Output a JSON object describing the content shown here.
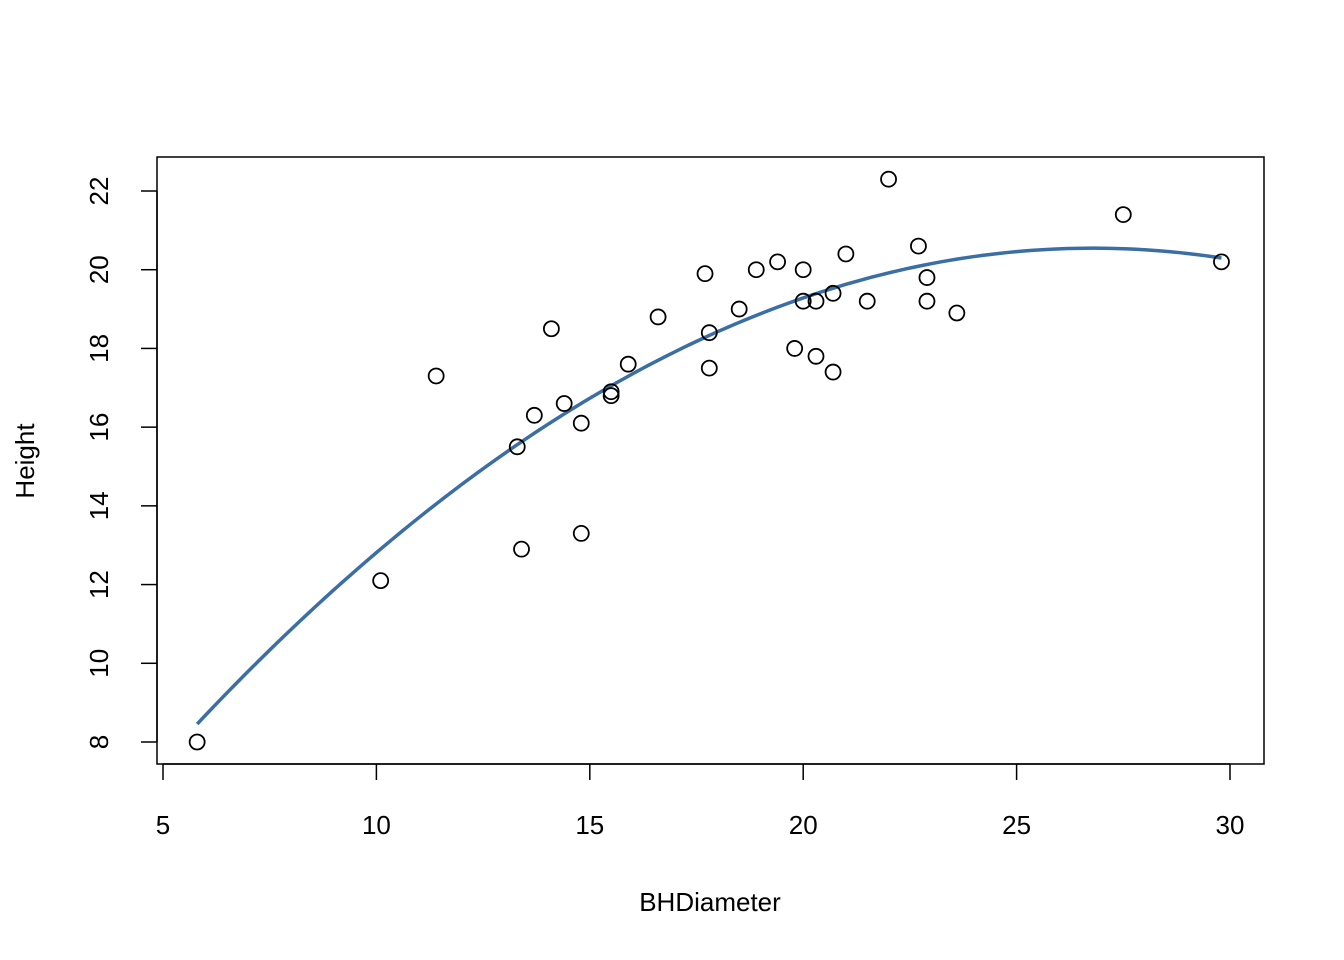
{
  "chart_data": {
    "type": "scatter",
    "title": "",
    "xlabel": "BHDiameter",
    "ylabel": "Height",
    "xlim": [
      5,
      30
    ],
    "ylim": [
      8,
      22
    ],
    "grid": false,
    "x_ticks": [
      5,
      10,
      15,
      20,
      25,
      30
    ],
    "y_ticks": [
      8,
      10,
      12,
      14,
      16,
      18,
      20,
      22
    ],
    "points": [
      {
        "x": 5.8,
        "y": 8.0
      },
      {
        "x": 10.1,
        "y": 12.1
      },
      {
        "x": 11.4,
        "y": 17.3
      },
      {
        "x": 13.3,
        "y": 15.5
      },
      {
        "x": 13.4,
        "y": 12.9
      },
      {
        "x": 13.7,
        "y": 16.3
      },
      {
        "x": 14.1,
        "y": 18.5
      },
      {
        "x": 14.4,
        "y": 16.6
      },
      {
        "x": 14.8,
        "y": 16.1
      },
      {
        "x": 14.8,
        "y": 13.3
      },
      {
        "x": 15.5,
        "y": 16.9
      },
      {
        "x": 15.5,
        "y": 16.8
      },
      {
        "x": 15.9,
        "y": 17.6
      },
      {
        "x": 16.6,
        "y": 18.8
      },
      {
        "x": 17.7,
        "y": 19.9
      },
      {
        "x": 17.8,
        "y": 18.4
      },
      {
        "x": 17.8,
        "y": 17.5
      },
      {
        "x": 18.5,
        "y": 19.0
      },
      {
        "x": 18.9,
        "y": 20.0
      },
      {
        "x": 19.4,
        "y": 20.2
      },
      {
        "x": 19.8,
        "y": 18.0
      },
      {
        "x": 20.0,
        "y": 20.0
      },
      {
        "x": 20.0,
        "y": 19.2
      },
      {
        "x": 20.3,
        "y": 19.2
      },
      {
        "x": 20.3,
        "y": 17.8
      },
      {
        "x": 20.7,
        "y": 19.4
      },
      {
        "x": 20.7,
        "y": 17.4
      },
      {
        "x": 21.0,
        "y": 20.4
      },
      {
        "x": 21.5,
        "y": 19.2
      },
      {
        "x": 22.0,
        "y": 22.3
      },
      {
        "x": 22.7,
        "y": 20.6
      },
      {
        "x": 22.9,
        "y": 19.8
      },
      {
        "x": 22.9,
        "y": 19.2
      },
      {
        "x": 23.6,
        "y": 18.9
      },
      {
        "x": 27.5,
        "y": 21.4
      },
      {
        "x": 29.8,
        "y": 20.2
      }
    ],
    "fitted_curve": {
      "type": "quadratic",
      "color": "#3a6ea5",
      "x_range": [
        5.8,
        29.8
      ],
      "coefficients": {
        "a": -0.02745,
        "b": 1.4706,
        "c": 0.8508
      }
    },
    "point_color": "#000000"
  }
}
